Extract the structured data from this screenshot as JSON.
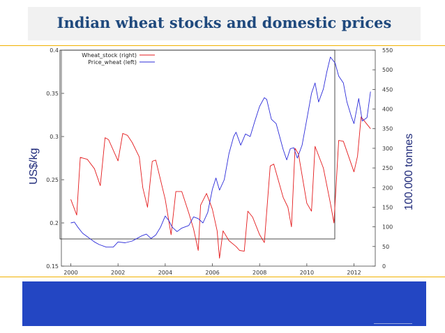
{
  "page": {
    "title": "Indian wheat stocks and domestic prices"
  },
  "chart_data": {
    "type": "line",
    "title": "Indian wheat stocks and domestic prices",
    "xlabel": "",
    "ylabel_left": "US$/kg",
    "ylabel_right": "100.000 tonnes",
    "xlim": [
      1999.6,
      2012.9
    ],
    "ylim_left": [
      0.15,
      0.4
    ],
    "ylim_right": [
      0,
      550
    ],
    "x_ticks": [
      "2000",
      "2002",
      "2004",
      "2006",
      "2008",
      "2010",
      "2012"
    ],
    "y_ticks_left": [
      "0.15",
      "0.2",
      "0.25",
      "0.3",
      "0.35",
      "0.4"
    ],
    "y_ticks_right": [
      "0",
      "50",
      "100",
      "150",
      "200",
      "250",
      "300",
      "350",
      "400",
      "450",
      "500",
      "550"
    ],
    "legend": [
      "Wheat_stock (right)",
      "Price_wheat (left)"
    ],
    "legend_position": "top-left",
    "series": [
      {
        "name": "Wheat_stock (right)",
        "axis": "right",
        "color": "#e41a1c",
        "x": [
          2000.0,
          2000.25,
          2000.4,
          2000.7,
          2001.0,
          2001.25,
          2001.45,
          2001.6,
          2002.0,
          2002.2,
          2002.4,
          2002.6,
          2002.9,
          2003.05,
          2003.25,
          2003.45,
          2003.6,
          2004.0,
          2004.25,
          2004.45,
          2004.7,
          2005.0,
          2005.2,
          2005.4,
          2005.5,
          2005.75,
          2006.0,
          2006.2,
          2006.3,
          2006.45,
          2006.7,
          2007.0,
          2007.15,
          2007.35,
          2007.5,
          2007.7,
          2008.0,
          2008.2,
          2008.45,
          2008.6,
          2009.0,
          2009.2,
          2009.35,
          2009.5,
          2009.65,
          2010.0,
          2010.2,
          2010.35,
          2010.7,
          2011.0,
          2011.15,
          2011.35,
          2011.55,
          2012.0,
          2012.15,
          2012.3,
          2012.5,
          2012.7
        ],
        "values": [
          170,
          130,
          277,
          272,
          248,
          205,
          327,
          322,
          268,
          338,
          333,
          315,
          278,
          200,
          150,
          267,
          270,
          170,
          80,
          190,
          190,
          135,
          95,
          40,
          155,
          185,
          145,
          90,
          20,
          90,
          65,
          50,
          40,
          38,
          140,
          125,
          80,
          60,
          255,
          260,
          175,
          150,
          100,
          300,
          285,
          160,
          140,
          305,
          250,
          160,
          110,
          320,
          318,
          240,
          280,
          380,
          365,
          350
        ]
      },
      {
        "name": "Price_wheat (left)",
        "axis": "left",
        "color": "#2b2bd9",
        "x": [
          2000.0,
          2000.15,
          2000.3,
          2000.5,
          2000.7,
          2001.0,
          2001.2,
          2001.5,
          2001.8,
          2002.0,
          2002.3,
          2002.6,
          2002.8,
          2003.0,
          2003.2,
          2003.4,
          2003.6,
          2003.8,
          2004.0,
          2004.15,
          2004.3,
          2004.5,
          2004.7,
          2005.0,
          2005.2,
          2005.4,
          2005.6,
          2005.8,
          2006.0,
          2006.15,
          2006.3,
          2006.5,
          2006.7,
          2006.9,
          2007.0,
          2007.2,
          2007.4,
          2007.6,
          2007.8,
          2008.0,
          2008.2,
          2008.3,
          2008.5,
          2008.7,
          2009.0,
          2009.15,
          2009.3,
          2009.45,
          2009.6,
          2009.8,
          2010.0,
          2010.2,
          2010.35,
          2010.5,
          2010.7,
          2010.85,
          2011.0,
          2011.2,
          2011.35,
          2011.55,
          2011.7,
          2011.9,
          2012.0,
          2012.2,
          2012.35,
          2012.55,
          2012.7
        ],
        "values": [
          0.2,
          0.201,
          0.195,
          0.188,
          0.184,
          0.178,
          0.175,
          0.172,
          0.172,
          0.178,
          0.177,
          0.179,
          0.182,
          0.185,
          0.187,
          0.182,
          0.186,
          0.195,
          0.208,
          0.203,
          0.195,
          0.19,
          0.194,
          0.197,
          0.207,
          0.205,
          0.2,
          0.212,
          0.239,
          0.252,
          0.238,
          0.25,
          0.28,
          0.3,
          0.305,
          0.29,
          0.303,
          0.3,
          0.318,
          0.335,
          0.345,
          0.343,
          0.32,
          0.315,
          0.285,
          0.273,
          0.286,
          0.287,
          0.275,
          0.29,
          0.32,
          0.35,
          0.362,
          0.34,
          0.355,
          0.375,
          0.392,
          0.385,
          0.37,
          0.362,
          0.34,
          0.322,
          0.315,
          0.344,
          0.318,
          0.322,
          0.352
        ]
      }
    ]
  }
}
